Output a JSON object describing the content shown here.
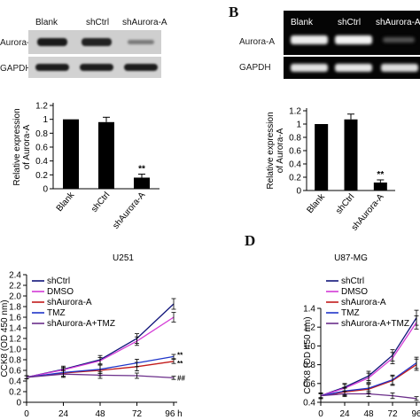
{
  "panels": {
    "a": {
      "letter": "",
      "lane_labels": [
        "Blank",
        "shCtrl",
        "shAurora-A"
      ],
      "row_labels": [
        "Aurora-A",
        "GAPDH"
      ]
    },
    "b": {
      "letter": "B",
      "lane_labels": [
        "Blank",
        "shCtrl",
        "shAurora-A"
      ],
      "row_labels": [
        "Aurora-A",
        "GAPDH"
      ]
    },
    "c": {
      "letter": ""
    },
    "d": {
      "letter": "D"
    }
  },
  "chart_data": [
    {
      "id": "bar-a",
      "type": "bar",
      "categories": [
        "Blank",
        "shCtrl",
        "shAurora-A"
      ],
      "values": [
        1.0,
        0.96,
        0.16
      ],
      "errors": [
        0.0,
        0.07,
        0.05
      ],
      "annotations": [
        "",
        "",
        "**"
      ],
      "ylabel": "Relative expression\nof Aurora-A",
      "ylim": [
        0,
        1.2
      ],
      "yticks": [
        "0",
        "0.2",
        "0.4",
        "0.6",
        "0.8",
        "1",
        "1.2"
      ],
      "color": "#000000"
    },
    {
      "id": "bar-b",
      "type": "bar",
      "categories": [
        "Blank",
        "shCtrl",
        "shAurora-A"
      ],
      "values": [
        1.0,
        1.07,
        0.12
      ],
      "errors": [
        0.0,
        0.08,
        0.04
      ],
      "annotations": [
        "",
        "",
        "**"
      ],
      "ylabel": "Relative expression\nof Aurora-A",
      "ylim": [
        0,
        1.2
      ],
      "yticks": [
        "0",
        "0.2",
        "0.4",
        "0.6",
        "0.8",
        "1",
        "1.2"
      ],
      "color": "#000000"
    },
    {
      "id": "line-c",
      "type": "line",
      "title": "U251",
      "ylabel": "CCK8 (OD 450 nm)",
      "x": [
        0,
        24,
        48,
        72,
        96
      ],
      "xtick_labels": [
        "0",
        "24",
        "48",
        "72",
        "96 h"
      ],
      "ylim": [
        0,
        2.4
      ],
      "yticks": [
        "0",
        "0.2",
        "0.4",
        "0.6",
        "0.8",
        "1.0",
        "1.2",
        "1.4",
        "1.6",
        "1.8",
        "2.0",
        "2.2",
        "2.4"
      ],
      "series": [
        {
          "name": "shCtrl",
          "color": "#10147a",
          "values": [
            0.47,
            0.62,
            0.8,
            1.2,
            1.85
          ],
          "errors": [
            0.03,
            0.06,
            0.08,
            0.09,
            0.1
          ]
        },
        {
          "name": "DMSO",
          "color": "#d43ad6",
          "values": [
            0.47,
            0.61,
            0.78,
            1.15,
            1.6
          ],
          "errors": [
            0.03,
            0.05,
            0.06,
            0.08,
            0.09
          ]
        },
        {
          "name": "shAurora-A",
          "color": "#c21a1a",
          "values": [
            0.47,
            0.55,
            0.6,
            0.67,
            0.77
          ],
          "errors": [
            0.03,
            0.08,
            0.1,
            0.08,
            0.04
          ]
        },
        {
          "name": "TMZ",
          "color": "#1f35c9",
          "values": [
            0.47,
            0.56,
            0.62,
            0.74,
            0.86
          ],
          "errors": [
            0.03,
            0.07,
            0.08,
            0.07,
            0.04
          ]
        },
        {
          "name": "shAurora-A+TMZ",
          "color": "#6b2e8a",
          "values": [
            0.47,
            0.53,
            0.51,
            0.5,
            0.46
          ],
          "errors": [
            0.03,
            0.06,
            0.06,
            0.05,
            0.03
          ]
        }
      ],
      "end_annotations": [
        "",
        "",
        "**",
        "**",
        "##"
      ]
    },
    {
      "id": "line-d",
      "type": "line",
      "title": "U87-MG",
      "ylabel": "CCK8 (OD 450 nm)",
      "x": [
        0,
        24,
        48,
        72,
        96
      ],
      "xtick_labels": [
        "0",
        "24",
        "48",
        "72",
        "96"
      ],
      "ylim": [
        0.4,
        1.4
      ],
      "yticks": [
        "0.4",
        "0.6",
        "0.8",
        "1.0",
        "1.2",
        "1.4"
      ],
      "series": [
        {
          "name": "shCtrl",
          "color": "#10147a",
          "values": [
            0.47,
            0.56,
            0.68,
            0.9,
            1.3
          ],
          "errors": [
            0.03,
            0.04,
            0.05,
            0.06,
            0.08
          ]
        },
        {
          "name": "DMSO",
          "color": "#d43ad6",
          "values": [
            0.47,
            0.55,
            0.66,
            0.87,
            1.25
          ],
          "errors": [
            0.03,
            0.04,
            0.05,
            0.06,
            0.07
          ]
        },
        {
          "name": "shAurora-A",
          "color": "#c21a1a",
          "values": [
            0.47,
            0.51,
            0.54,
            0.63,
            0.8
          ],
          "errors": [
            0.03,
            0.04,
            0.05,
            0.05,
            0.06
          ]
        },
        {
          "name": "TMZ",
          "color": "#1f35c9",
          "values": [
            0.47,
            0.52,
            0.55,
            0.64,
            0.82
          ],
          "errors": [
            0.03,
            0.04,
            0.05,
            0.05,
            0.06
          ]
        },
        {
          "name": "shAurora-A+TMZ",
          "color": "#6b2e8a",
          "values": [
            0.47,
            0.49,
            0.49,
            0.47,
            0.44
          ],
          "errors": [
            0.02,
            0.03,
            0.03,
            0.03,
            0.02
          ]
        }
      ]
    }
  ]
}
